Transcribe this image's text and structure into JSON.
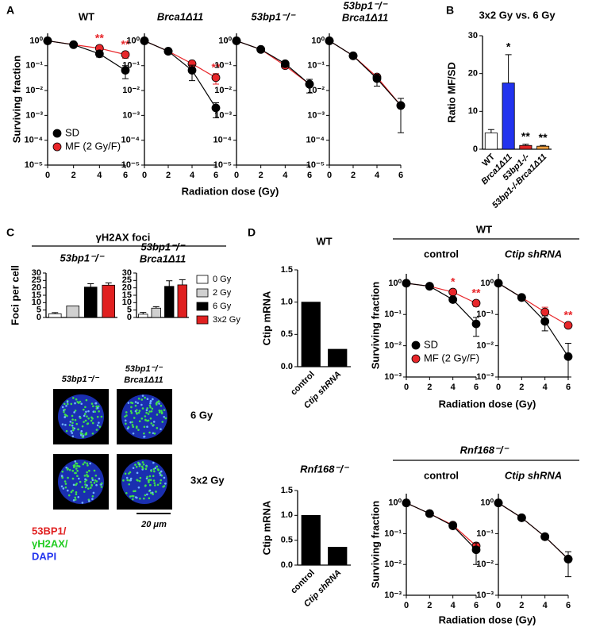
{
  "figure": {
    "panel_labels": [
      "A",
      "B",
      "C",
      "D"
    ],
    "a_xlabel": "Radiation dose (Gy)",
    "c_header": "γH2AX foci",
    "d_wt_header": "WT",
    "d_wt_xlabel": "Radiation dose (Gy)",
    "d_rnf_header": "Rnf168⁻/⁻",
    "d_rnf_xlabel": "Radiation dose (Gy)",
    "images": {
      "col_titles": [
        "53bp1⁻/⁻",
        "53bp1⁻/⁻",
        "Brca1Δ11"
      ],
      "row_titles": [
        "6 Gy",
        "3x2 Gy"
      ],
      "scale": "20 μm",
      "stain": [
        "53BP1/",
        "γH2AX/",
        "DAPI"
      ]
    }
  },
  "chart_data": [
    {
      "type": "line",
      "title": "WT",
      "ylabel": "Surviving fraction",
      "x": [
        0,
        2,
        4,
        6
      ],
      "xlim": [
        0,
        6
      ],
      "xticks": [
        0,
        2,
        4,
        6
      ],
      "ylim": [
        1e-05,
        2
      ],
      "yscale": "log",
      "yticks": [
        {
          "value": 1,
          "label": "10⁰"
        },
        {
          "value": 0.1,
          "label": "10⁻¹"
        },
        {
          "value": 0.01,
          "label": "10⁻²"
        },
        {
          "value": 0.001,
          "label": "10⁻³"
        },
        {
          "value": 0.0001,
          "label": "10⁻⁴"
        },
        {
          "value": 1e-05,
          "label": "10⁻⁵"
        }
      ],
      "series": [
        {
          "name": "SD",
          "color": "#000000",
          "values": [
            1,
            0.7,
            0.3,
            0.065
          ],
          "errors": [
            null,
            null,
            0.08,
            0.035
          ]
        },
        {
          "name": "MF (2 Gy/F)",
          "color": "#e8262a",
          "values": [
            1,
            0.7,
            0.5,
            0.28
          ],
          "errors": [
            null,
            null,
            0.15,
            0.08
          ]
        }
      ],
      "annotations": [
        {
          "x": 4,
          "text": "**"
        },
        {
          "x": 6,
          "text": "**"
        }
      ],
      "legend": "lower left"
    },
    {
      "type": "line",
      "title": "Brca1Δ11",
      "italic_title": true,
      "x": [
        0,
        2,
        4,
        6
      ],
      "xlim": [
        0,
        6
      ],
      "xticks": [
        0,
        2,
        4,
        6
      ],
      "ylim": [
        1e-05,
        2
      ],
      "yscale": "log",
      "yticks": [
        {
          "value": 1,
          "label": "10⁰"
        },
        {
          "value": 0.1,
          "label": "10⁻¹"
        },
        {
          "value": 0.01,
          "label": "10⁻²"
        },
        {
          "value": 0.001,
          "label": "10⁻³"
        },
        {
          "value": 0.0001,
          "label": "10⁻⁴"
        },
        {
          "value": 1e-05,
          "label": "10⁻⁵"
        }
      ],
      "series": [
        {
          "name": "SD",
          "color": "#000000",
          "values": [
            1,
            0.38,
            0.065,
            0.002
          ],
          "errors": [
            null,
            null,
            0.04,
            0.0012
          ]
        },
        {
          "name": "MF (2 Gy/F)",
          "color": "#e8262a",
          "values": [
            1,
            0.38,
            0.12,
            0.033
          ],
          "errors": [
            null,
            null,
            0.03,
            0.015
          ]
        }
      ],
      "annotations": [
        {
          "x": 6,
          "text": "**"
        }
      ]
    },
    {
      "type": "line",
      "title": "53bp1⁻/⁻",
      "italic_title": true,
      "x": [
        0,
        2,
        4,
        6
      ],
      "xlim": [
        0,
        6
      ],
      "xticks": [
        0,
        2,
        4,
        6
      ],
      "ylim": [
        1e-05,
        2
      ],
      "yscale": "log",
      "yticks": [
        {
          "value": 1,
          "label": "10⁰"
        },
        {
          "value": 0.1,
          "label": "10⁻¹"
        },
        {
          "value": 0.01,
          "label": "10⁻²"
        },
        {
          "value": 0.001,
          "label": "10⁻³"
        },
        {
          "value": 0.0001,
          "label": "10⁻⁴"
        },
        {
          "value": 1e-05,
          "label": "10⁻⁵"
        }
      ],
      "series": [
        {
          "name": "SD",
          "color": "#000000",
          "values": [
            1,
            0.45,
            0.12,
            0.018
          ],
          "errors": [
            null,
            null,
            0.03,
            0.01
          ]
        },
        {
          "name": "MF (2 Gy/F)",
          "color": "#e8262a",
          "values": [
            1,
            0.45,
            0.1,
            0.018
          ],
          "errors": [
            null,
            null,
            null,
            null
          ]
        }
      ]
    },
    {
      "type": "line",
      "title": [
        "53bp1⁻/⁻",
        "Brca1Δ11"
      ],
      "italic_title": true,
      "x": [
        0,
        2,
        4,
        6
      ],
      "xlim": [
        0,
        6
      ],
      "xticks": [
        0,
        2,
        4,
        6
      ],
      "ylim": [
        1e-05,
        2
      ],
      "yscale": "log",
      "yticks": [
        {
          "value": 1,
          "label": "10⁰"
        },
        {
          "value": 0.1,
          "label": "10⁻¹"
        },
        {
          "value": 0.01,
          "label": "10⁻²"
        },
        {
          "value": 0.001,
          "label": "10⁻³"
        },
        {
          "value": 0.0001,
          "label": "10⁻⁴"
        },
        {
          "value": 1e-05,
          "label": "10⁻⁵"
        }
      ],
      "series": [
        {
          "name": "SD",
          "color": "#000000",
          "values": [
            1,
            0.25,
            0.03,
            0.0025
          ],
          "errors": [
            null,
            null,
            0.015,
            0.0023
          ]
        },
        {
          "name": "MF (2 Gy/F)",
          "color": "#e8262a",
          "values": [
            1,
            0.25,
            0.035,
            0.0025
          ],
          "errors": [
            null,
            null,
            null,
            null
          ]
        }
      ]
    },
    {
      "type": "bar",
      "title": "3x2 Gy vs. 6 Gy",
      "ylabel": "Ratio MF/SD",
      "categories": [
        "WT",
        "Brca1Δ11",
        "53bp1-/-",
        "53bp1-/-Brca1Δ11"
      ],
      "values": [
        4.3,
        17.5,
        1.0,
        0.8
      ],
      "errors": [
        0.9,
        7.5,
        0.3,
        0.2
      ],
      "colors": [
        "#ffffff",
        "#2233ee",
        "#dd2222",
        "#f0a040"
      ],
      "ylim": [
        0,
        30
      ],
      "yticks": [
        0,
        10,
        20,
        30
      ],
      "xtick_labels": "rotated",
      "annotations": [
        {
          "index": 1,
          "text": "*"
        },
        {
          "index": 2,
          "text": "**"
        },
        {
          "index": 3,
          "text": "**"
        }
      ]
    },
    {
      "type": "bar",
      "title": "53bp1⁻/⁻",
      "italic_title": true,
      "ylabel": "Foci per cell",
      "categories": [
        "0 Gy",
        "2 Gy",
        "6 Gy",
        "3x2 Gy"
      ],
      "values": [
        2.5,
        7.8,
        20.5,
        21.8
      ],
      "errors": [
        0.8,
        null,
        2.3,
        1.5
      ],
      "colors": [
        "#ffffff",
        "#d0d0d0",
        "#000000",
        "#e02020"
      ],
      "ylim": [
        0,
        30
      ],
      "yticks": [
        0,
        5,
        10,
        15,
        20,
        25,
        30
      ]
    },
    {
      "type": "bar",
      "title": [
        "53bp1⁻/⁻",
        "Brca1Δ11"
      ],
      "italic_title": true,
      "categories": [
        "0 Gy",
        "2 Gy",
        "6 Gy",
        "3x2 Gy"
      ],
      "values": [
        2.2,
        6.3,
        21,
        22
      ],
      "errors": [
        1.2,
        1.0,
        3.8,
        3.5
      ],
      "colors": [
        "#ffffff",
        "#d0d0d0",
        "#000000",
        "#e02020"
      ],
      "ylim": [
        0,
        30
      ],
      "yticks": [
        0,
        5,
        10,
        15,
        20,
        25,
        30
      ],
      "legend": "right"
    },
    {
      "type": "bar",
      "title": "WT",
      "ylabel": "Ctip mRNA",
      "categories": [
        "control",
        "Ctip shRNA"
      ],
      "values": [
        1.0,
        0.27
      ],
      "colors": [
        "#000000",
        "#000000"
      ],
      "ylim": [
        0,
        1.5
      ],
      "yticks": [
        {
          "value": 0,
          "label": "0.0"
        },
        {
          "value": 0.5,
          "label": "0.5"
        },
        {
          "value": 1,
          "label": "1.0"
        },
        {
          "value": 1.5,
          "label": "1.5"
        }
      ],
      "xtick_labels": "rotated"
    },
    {
      "type": "bar",
      "title": "Rnf168⁻/⁻",
      "italic_title": true,
      "ylabel": "Ctip mRNA",
      "categories": [
        "control",
        "Ctip shRNA"
      ],
      "values": [
        1.0,
        0.36
      ],
      "colors": [
        "#000000",
        "#000000"
      ],
      "ylim": [
        0,
        1.5
      ],
      "yticks": [
        {
          "value": 0,
          "label": "0.0"
        },
        {
          "value": 0.5,
          "label": "0.5"
        },
        {
          "value": 1,
          "label": "1.0"
        },
        {
          "value": 1.5,
          "label": "1.5"
        }
      ],
      "xtick_labels": "rotated"
    },
    {
      "type": "line",
      "title": "control",
      "ylabel": "Surviving fraction",
      "x": [
        0,
        2,
        4,
        6
      ],
      "xlim": [
        0,
        6
      ],
      "xticks": [
        0,
        2,
        4,
        6
      ],
      "ylim": [
        0.001,
        2
      ],
      "yscale": "log",
      "yticks": [
        {
          "value": 1,
          "label": "10⁰"
        },
        {
          "value": 0.1,
          "label": "10⁻¹"
        },
        {
          "value": 0.01,
          "label": "10⁻²"
        },
        {
          "value": 0.001,
          "label": "10⁻³"
        }
      ],
      "series": [
        {
          "name": "SD",
          "color": "#000000",
          "values": [
            1,
            0.8,
            0.3,
            0.05
          ],
          "errors": [
            null,
            null,
            null,
            0.03
          ]
        },
        {
          "name": "MF (2 Gy/F)",
          "color": "#e8262a",
          "values": [
            1,
            0.8,
            0.52,
            0.23
          ],
          "errors": [
            null,
            null,
            null,
            0.05
          ]
        }
      ],
      "annotations": [
        {
          "x": 4,
          "text": "*"
        },
        {
          "x": 6,
          "text": "**"
        }
      ],
      "legend": "lower left"
    },
    {
      "type": "line",
      "title": "Ctip shRNA",
      "italic_title": true,
      "x": [
        0,
        2,
        4,
        6
      ],
      "xlim": [
        0,
        6
      ],
      "xticks": [
        0,
        2,
        4,
        6
      ],
      "ylim": [
        0.001,
        2
      ],
      "yscale": "log",
      "yticks": [
        {
          "value": 1,
          "label": "10⁰"
        },
        {
          "value": 0.1,
          "label": "10⁻¹"
        },
        {
          "value": 0.01,
          "label": "10⁻²"
        },
        {
          "value": 0.001,
          "label": "10⁻³"
        }
      ],
      "series": [
        {
          "name": "SD",
          "color": "#000000",
          "values": [
            1,
            0.35,
            0.06,
            0.0045
          ],
          "errors": [
            null,
            null,
            0.03,
            0.0075
          ]
        },
        {
          "name": "MF (2 Gy/F)",
          "color": "#e8262a",
          "values": [
            1,
            0.35,
            0.12,
            0.045
          ],
          "errors": [
            null,
            null,
            0.05,
            null
          ]
        }
      ],
      "annotations": [
        {
          "x": 6,
          "text": "**"
        }
      ]
    },
    {
      "type": "line",
      "title": "control",
      "ylabel": "Surviving fraction",
      "x": [
        0,
        2,
        4,
        6
      ],
      "xlim": [
        0,
        6
      ],
      "xticks": [
        0,
        2,
        4,
        6
      ],
      "ylim": [
        0.001,
        2
      ],
      "yscale": "log",
      "yticks": [
        {
          "value": 1,
          "label": "10⁰"
        },
        {
          "value": 0.1,
          "label": "10⁻¹"
        },
        {
          "value": 0.01,
          "label": "10⁻²"
        },
        {
          "value": 0.001,
          "label": "10⁻³"
        }
      ],
      "series": [
        {
          "name": "SD",
          "color": "#000000",
          "values": [
            1,
            0.45,
            0.18,
            0.03
          ],
          "errors": [
            null,
            null,
            null,
            0.02
          ]
        },
        {
          "name": "MF (2 Gy/F)",
          "color": "#e8262a",
          "values": [
            1,
            0.45,
            0.19,
            0.04
          ],
          "errors": [
            null,
            null,
            null,
            null
          ]
        }
      ]
    },
    {
      "type": "line",
      "title": "Ctip shRNA",
      "italic_title": true,
      "x": [
        0,
        2,
        4,
        6
      ],
      "xlim": [
        0,
        6
      ],
      "xticks": [
        0,
        2,
        4,
        6
      ],
      "ylim": [
        0.001,
        2
      ],
      "yscale": "log",
      "yticks": [
        {
          "value": 1,
          "label": "10⁰"
        },
        {
          "value": 0.1,
          "label": "10⁻¹"
        },
        {
          "value": 0.01,
          "label": "10⁻²"
        },
        {
          "value": 0.001,
          "label": "10⁻³"
        }
      ],
      "series": [
        {
          "name": "SD",
          "color": "#000000",
          "values": [
            1,
            0.33,
            0.08,
            0.015
          ],
          "errors": [
            null,
            null,
            null,
            0.011
          ]
        },
        {
          "name": "MF (2 Gy/F)",
          "color": "#e8262a",
          "values": [
            1,
            0.33,
            0.08,
            0.015
          ],
          "errors": [
            null,
            null,
            null,
            null
          ]
        }
      ]
    }
  ]
}
